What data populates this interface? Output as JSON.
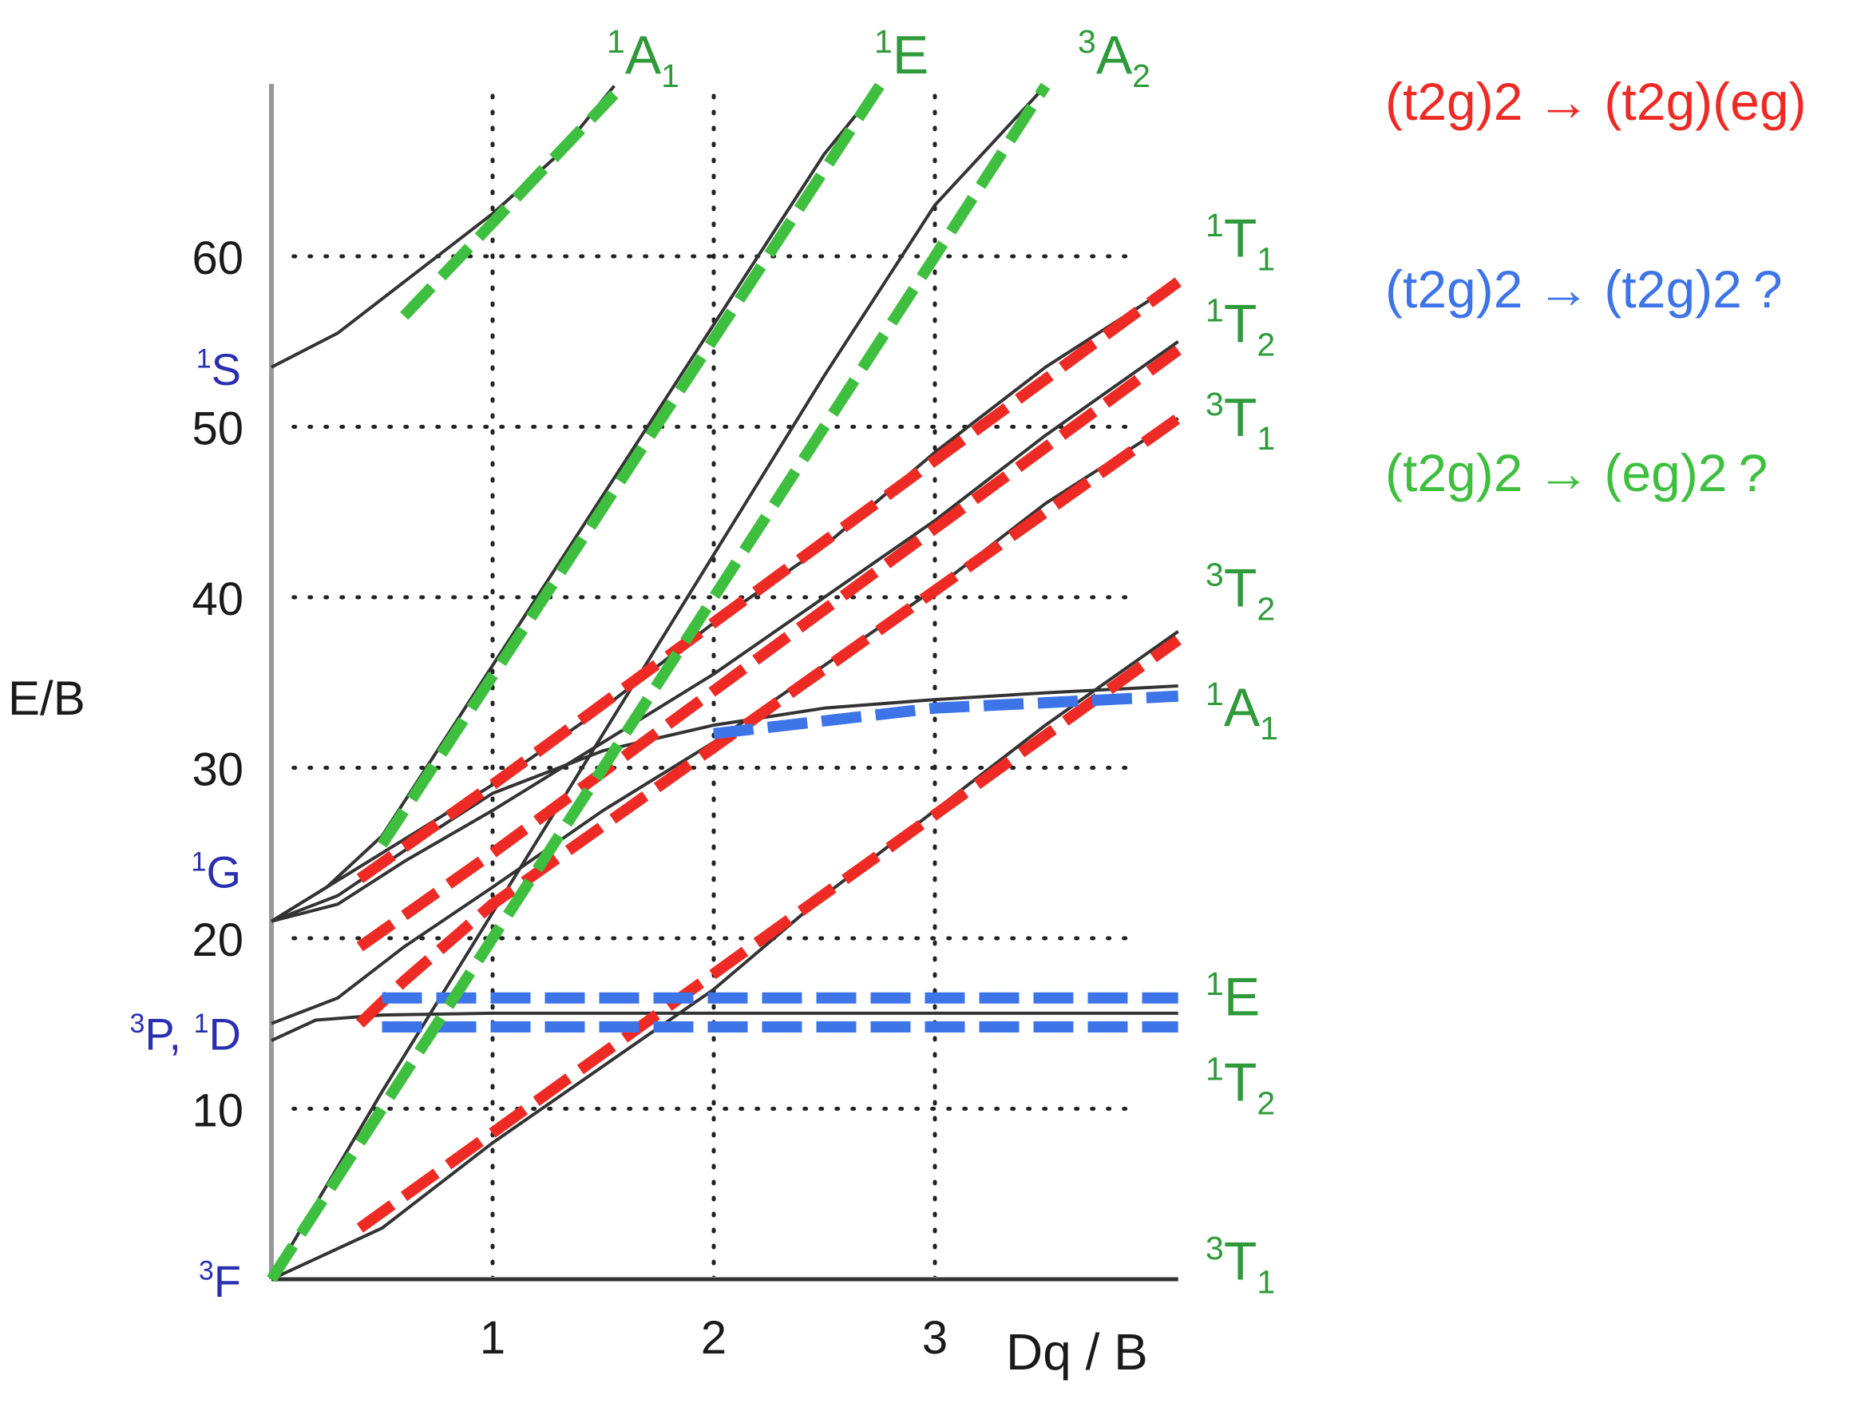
{
  "chart_data": {
    "type": "line",
    "title": "",
    "xlabel": "Dq / B",
    "ylabel": "E/B",
    "xlim": [
      0,
      4.1
    ],
    "ylim": [
      0,
      70
    ],
    "x_ticks": [
      "1",
      "2",
      "3"
    ],
    "y_ticks": [
      "10",
      "20",
      "30",
      "40",
      "50",
      "60"
    ],
    "grid": "dotted",
    "free_ion_terms": [
      {
        "sup": "3",
        "main": "F",
        "y": 0
      },
      {
        "sup": "3",
        "main": "P, ",
        "sup2": "1",
        "main2": "D",
        "y": 14.5
      },
      {
        "sup": "1",
        "main": "G",
        "y": 24
      },
      {
        "sup": "1",
        "main": "S",
        "y": 53.5
      }
    ],
    "state_labels": [
      {
        "sup": "1",
        "main": "A",
        "sub": "1",
        "y": 71
      },
      {
        "sup": "1",
        "main": "E",
        "y": 71
      },
      {
        "sup": "3",
        "main": "A",
        "sub": "2",
        "y": 71
      },
      {
        "sup": "1",
        "main": "T",
        "sub": "1",
        "y": 61
      },
      {
        "sup": "1",
        "main": "T",
        "sub": "2",
        "y": 56
      },
      {
        "sup": "3",
        "main": "T",
        "sub": "1",
        "y": 50.5
      },
      {
        "sup": "3",
        "main": "T",
        "sub": "2",
        "y": 40.5
      },
      {
        "sup": "1",
        "main": "A",
        "sub": "1",
        "y": 33.5
      },
      {
        "sup": "1",
        "main": "E",
        "y": 16.5
      },
      {
        "sup": "1",
        "main": "T",
        "sub": "2",
        "y": 11.5
      },
      {
        "sup": "3",
        "main": "T",
        "sub": "1",
        "y": 1
      }
    ],
    "legend": [
      {
        "color": "#ee2a24",
        "from": "(t2g)2",
        "arrow": "→",
        "to": "(t2g)(eg)",
        "q": ""
      },
      {
        "color": "#3d74e8",
        "from": "(t2g)2",
        "arrow": "→",
        "to": "(t2g)2",
        "q": "?"
      },
      {
        "color": "#3fbf3f",
        "from": "(t2g)2",
        "arrow": "→",
        "to": "(eg)2",
        "q": "?"
      }
    ],
    "series": [
      {
        "color": "#333333",
        "style": "solid",
        "points": [
          [
            0,
            0
          ],
          [
            4.1,
            0
          ]
        ]
      },
      {
        "color": "#333333",
        "style": "solid",
        "points": [
          [
            0,
            0
          ],
          [
            0.5,
            3
          ],
          [
            1,
            8
          ],
          [
            1.5,
            12.5
          ],
          [
            2,
            17
          ],
          [
            2.5,
            22.5
          ],
          [
            3,
            27.5
          ],
          [
            3.5,
            32.5
          ],
          [
            4.1,
            38
          ]
        ]
      },
      {
        "color": "#333333",
        "style": "solid",
        "points": [
          [
            0,
            0
          ],
          [
            0.5,
            11
          ],
          [
            1,
            21.5
          ],
          [
            1.5,
            32
          ],
          [
            2,
            42.5
          ],
          [
            2.5,
            53
          ],
          [
            3,
            63
          ],
          [
            3.5,
            70
          ]
        ]
      },
      {
        "color": "#333333",
        "style": "solid",
        "points": [
          [
            0,
            14
          ],
          [
            0.2,
            15.2
          ],
          [
            0.5,
            15.5
          ],
          [
            1,
            15.6
          ],
          [
            2,
            15.6
          ],
          [
            4.1,
            15.6
          ]
        ]
      },
      {
        "color": "#333333",
        "style": "solid",
        "points": [
          [
            0,
            15
          ],
          [
            0.3,
            16.5
          ],
          [
            0.6,
            19.5
          ],
          [
            1,
            23
          ],
          [
            1.5,
            27.5
          ],
          [
            2,
            31.5
          ],
          [
            2.5,
            36
          ],
          [
            3,
            40.5
          ],
          [
            3.5,
            45.5
          ],
          [
            4.1,
            50.5
          ]
        ]
      },
      {
        "color": "#333333",
        "style": "solid",
        "points": [
          [
            0,
            21
          ],
          [
            0.3,
            22
          ],
          [
            0.6,
            24.5
          ],
          [
            1,
            27.5
          ],
          [
            1.5,
            31.5
          ],
          [
            2,
            35.5
          ],
          [
            2.5,
            40
          ],
          [
            3,
            44.5
          ],
          [
            3.5,
            49.5
          ],
          [
            4.1,
            55
          ]
        ]
      },
      {
        "color": "#333333",
        "style": "solid",
        "points": [
          [
            0,
            21
          ],
          [
            0.3,
            22.5
          ],
          [
            0.7,
            26
          ],
          [
            1,
            28.5
          ],
          [
            1.5,
            31
          ],
          [
            2,
            32.5
          ],
          [
            2.5,
            33.5
          ],
          [
            3,
            34
          ],
          [
            3.5,
            34.4
          ],
          [
            4.1,
            34.8
          ]
        ]
      },
      {
        "color": "#333333",
        "style": "solid",
        "points": [
          [
            0,
            21
          ],
          [
            0.25,
            23
          ],
          [
            0.5,
            25
          ],
          [
            1,
            29
          ],
          [
            1.5,
            33.5
          ],
          [
            2,
            38.5
          ],
          [
            2.5,
            43
          ],
          [
            3,
            48.5
          ],
          [
            3.5,
            53.5
          ],
          [
            4.1,
            58.5
          ]
        ]
      },
      {
        "color": "#333333",
        "style": "solid",
        "points": [
          [
            0,
            21
          ],
          [
            0.25,
            23
          ],
          [
            0.5,
            26
          ],
          [
            1,
            36
          ],
          [
            1.5,
            46
          ],
          [
            2,
            56
          ],
          [
            2.5,
            66
          ],
          [
            2.75,
            70
          ]
        ]
      },
      {
        "color": "#333333",
        "style": "solid",
        "points": [
          [
            0,
            53.5
          ],
          [
            0.3,
            55.5
          ],
          [
            0.6,
            58.5
          ],
          [
            1,
            62.5
          ],
          [
            1.3,
            66
          ],
          [
            1.55,
            70
          ]
        ]
      },
      {
        "color": "#ee2a24",
        "style": "dashed",
        "points": [
          [
            0.4,
            3
          ],
          [
            4.1,
            37.5
          ]
        ]
      },
      {
        "color": "#ee2a24",
        "style": "dashed",
        "points": [
          [
            0.4,
            15
          ],
          [
            0.6,
            17.5
          ],
          [
            1,
            22
          ],
          [
            4.1,
            50.5
          ]
        ]
      },
      {
        "color": "#ee2a24",
        "style": "dashed",
        "points": [
          [
            0.4,
            19.5
          ],
          [
            1,
            25
          ],
          [
            4.1,
            54.5
          ]
        ]
      },
      {
        "color": "#ee2a24",
        "style": "dashed",
        "points": [
          [
            0.4,
            23.5
          ],
          [
            1,
            29
          ],
          [
            4.1,
            58.5
          ]
        ]
      },
      {
        "color": "#3d74e8",
        "style": "dashed",
        "points": [
          [
            0.5,
            16.5
          ],
          [
            4.1,
            16.5
          ]
        ]
      },
      {
        "color": "#3d74e8",
        "style": "dashed",
        "points": [
          [
            0.5,
            14.8
          ],
          [
            4.1,
            14.8
          ]
        ]
      },
      {
        "color": "#3d74e8",
        "style": "dashed",
        "points": [
          [
            2,
            32
          ],
          [
            3,
            33.5
          ],
          [
            4.1,
            34.2
          ]
        ]
      },
      {
        "color": "#3fbf3f",
        "style": "dashed",
        "points": [
          [
            0,
            0
          ],
          [
            3.5,
            70
          ]
        ]
      },
      {
        "color": "#3fbf3f",
        "style": "dashed",
        "points": [
          [
            0.5,
            25.5
          ],
          [
            2.75,
            70
          ]
        ]
      },
      {
        "color": "#3fbf3f",
        "style": "dashed",
        "points": [
          [
            0.6,
            56.5
          ],
          [
            1.55,
            69.5
          ]
        ]
      }
    ]
  }
}
